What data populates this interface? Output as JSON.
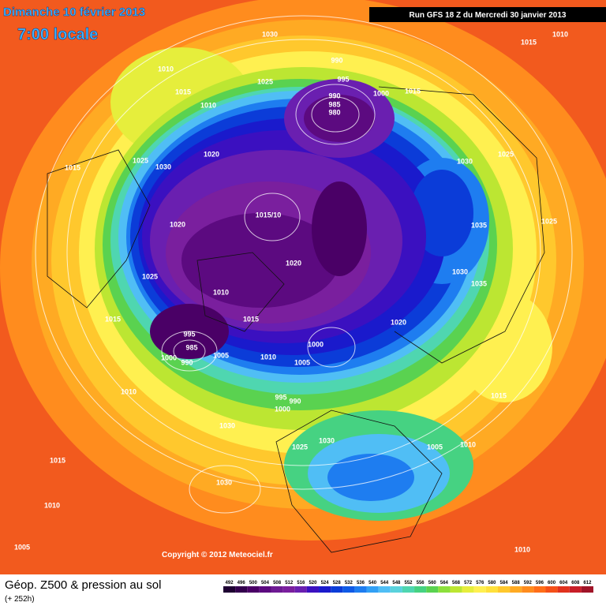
{
  "header": {
    "date": "Dimanche 10 février 2013",
    "time": "7:00 locale",
    "run": "Run GFS 18 Z du Mercredi 30 janvier 2013"
  },
  "map": {
    "pressure_labels": [
      "1030",
      "1010",
      "1015",
      "990",
      "1010",
      "1025",
      "995",
      "1015",
      "1010",
      "990",
      "985",
      "980",
      "1000",
      "1015",
      "1020",
      "1025",
      "1030",
      "1015",
      "1030",
      "1025",
      "1015/10",
      "1020",
      "1035",
      "1025",
      "1020",
      "1025",
      "1030",
      "1035",
      "1010",
      "1015",
      "1015",
      "1020",
      "995",
      "985",
      "1000",
      "1000",
      "990",
      "1005",
      "1010",
      "1005",
      "1010",
      "995",
      "990",
      "1000",
      "1015",
      "1030",
      "1030",
      "1025",
      "1005",
      "1010",
      "1015",
      "1030",
      "1010",
      "1005",
      "1010"
    ],
    "copyright": "Copyright © 2012 Meteociel.fr"
  },
  "footer": {
    "title": "Géop. Z500 & pression au sol",
    "lead": "(+ 252h)"
  },
  "colorbar": {
    "values": [
      492,
      496,
      500,
      504,
      508,
      512,
      516,
      520,
      524,
      528,
      532,
      536,
      540,
      544,
      548,
      552,
      556,
      560,
      564,
      568,
      572,
      576,
      580,
      584,
      588,
      592,
      596,
      600,
      604,
      608,
      612
    ],
    "colors": [
      "#1e0032",
      "#33004d",
      "#4a0066",
      "#5c0a80",
      "#6e1a94",
      "#7a1f9e",
      "#6a1fb0",
      "#3b10c0",
      "#1a1acc",
      "#0b3cd8",
      "#0f5ae6",
      "#1e7df0",
      "#32a0f5",
      "#50bef5",
      "#5ad2dc",
      "#4fd6b0",
      "#46d282",
      "#5ad250",
      "#8ce03c",
      "#bce632",
      "#e6ee3c",
      "#fff050",
      "#ffe13c",
      "#ffc82d",
      "#ffaa23",
      "#ff8c1e",
      "#ff6e19",
      "#f55019",
      "#e1321e",
      "#c81e28",
      "#a01428"
    ]
  }
}
